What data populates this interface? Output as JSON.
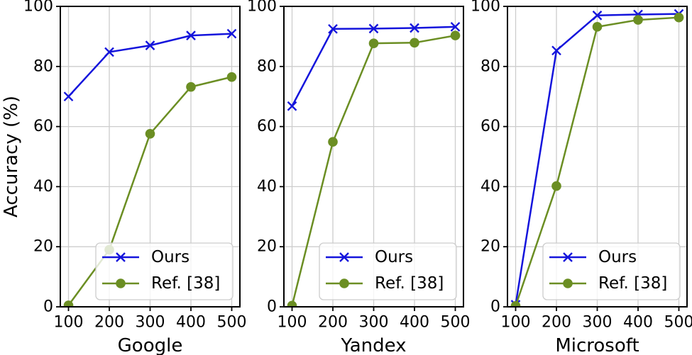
{
  "figure": {
    "ylabel": "Accuracy (%)",
    "background": "#ffffff",
    "text_color": "#000000",
    "grid_color": "#cdcdcd",
    "spine_color": "#000000",
    "legend": {
      "labels": [
        "Ours",
        "Ref. [38]"
      ],
      "border_color": "#cccccc",
      "fill": "rgba(255,255,255,0.8)",
      "position": "lower right"
    }
  },
  "chart_data": [
    {
      "type": "line",
      "title": "Google",
      "xlabel": "Google",
      "ylabel": "Accuracy (%)",
      "x": [
        100,
        200,
        300,
        400,
        500
      ],
      "xticks": [
        100,
        200,
        300,
        400,
        500
      ],
      "yticks": [
        0,
        20,
        40,
        60,
        80,
        100
      ],
      "ylim": [
        0,
        100
      ],
      "grid": true,
      "legend_position": "lower right",
      "series": [
        {
          "name": "Ours",
          "color": "#1414dc",
          "marker": "x",
          "values": [
            70,
            84.8,
            87,
            90.3,
            90.9
          ]
        },
        {
          "name": "Ref. [38]",
          "color": "#6b8e23",
          "marker": "circle",
          "values": [
            0.5,
            19,
            57.6,
            73.2,
            76.5
          ]
        }
      ]
    },
    {
      "type": "line",
      "title": "Yandex",
      "xlabel": "Yandex",
      "ylabel": "Accuracy (%)",
      "x": [
        100,
        200,
        300,
        400,
        500
      ],
      "xticks": [
        100,
        200,
        300,
        400,
        500
      ],
      "yticks": [
        0,
        20,
        40,
        60,
        80,
        100
      ],
      "ylim": [
        0,
        100
      ],
      "grid": true,
      "legend_position": "lower right",
      "series": [
        {
          "name": "Ours",
          "color": "#1414dc",
          "marker": "x",
          "values": [
            66.8,
            92.5,
            92.6,
            92.8,
            93.2
          ]
        },
        {
          "name": "Ref. [38]",
          "color": "#6b8e23",
          "marker": "circle",
          "values": [
            0.4,
            54.9,
            87.7,
            87.9,
            90.3
          ]
        }
      ]
    },
    {
      "type": "line",
      "title": "Microsoft",
      "xlabel": "Microsoft",
      "ylabel": "Accuracy (%)",
      "x": [
        100,
        200,
        300,
        400,
        500
      ],
      "xticks": [
        100,
        200,
        300,
        400,
        500
      ],
      "yticks": [
        0,
        20,
        40,
        60,
        80,
        100
      ],
      "ylim": [
        0,
        100
      ],
      "grid": true,
      "legend_position": "lower right",
      "series": [
        {
          "name": "Ours",
          "color": "#1414dc",
          "marker": "x",
          "values": [
            0.7,
            85.3,
            97,
            97.3,
            97.5
          ]
        },
        {
          "name": "Ref. [38]",
          "color": "#6b8e23",
          "marker": "circle",
          "values": [
            0.3,
            40.2,
            93.2,
            95.5,
            96.3
          ]
        }
      ]
    }
  ]
}
